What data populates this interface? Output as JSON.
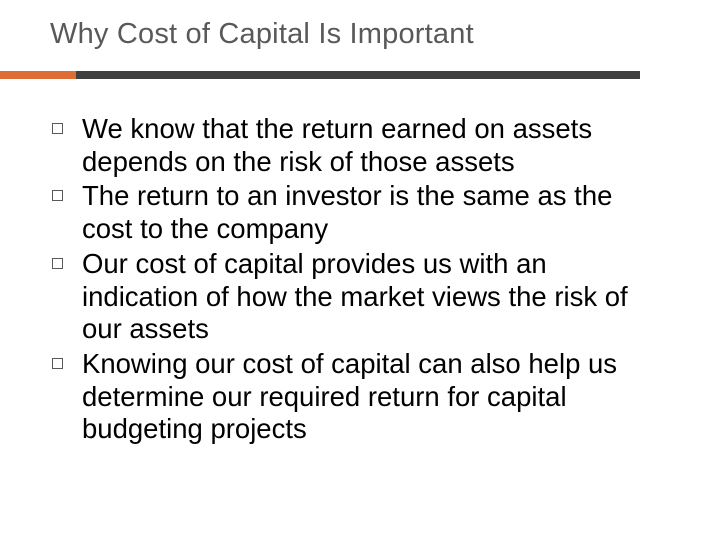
{
  "slide": {
    "title": "Why Cost of Capital Is Important",
    "title_color": "#595959",
    "title_fontsize": 29,
    "divider": {
      "left_color": "#de6c36",
      "left_width": 76,
      "right_color": "#3f3f3f",
      "height": 8,
      "total_width": 640
    },
    "body_fontsize": 27.5,
    "body_color": "#000000",
    "bullet_border_color": "#595959",
    "bullets": [
      "We know that the return earned on assets depends on the risk of those assets",
      "The return to an investor is the same as the cost to the company",
      "Our cost of capital provides us with an indication of how the market views the risk of our assets",
      "Knowing our cost of capital can also help us determine our required return for capital budgeting projects"
    ],
    "background_color": "#ffffff"
  }
}
